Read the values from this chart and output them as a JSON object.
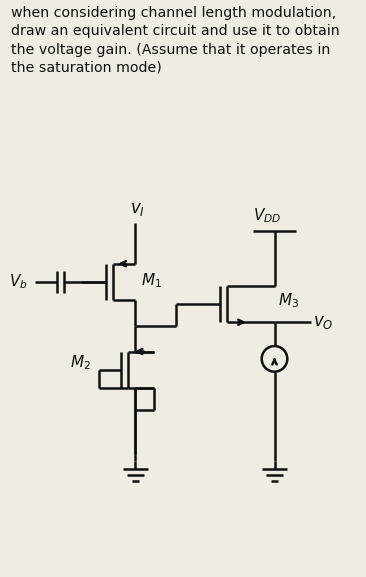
{
  "title_text": "when considering channel length modulation,\ndraw an equivalent circuit and use it to obtain\nthe voltage gain. (Assume that it operates in\nthe saturation mode)",
  "bg_color": "#f0ece4",
  "panel_bg": "#e4dfd5",
  "line_color": "#111111",
  "text_color": "#111111",
  "line_width": 1.8,
  "fig_width": 3.66,
  "fig_height": 5.77
}
